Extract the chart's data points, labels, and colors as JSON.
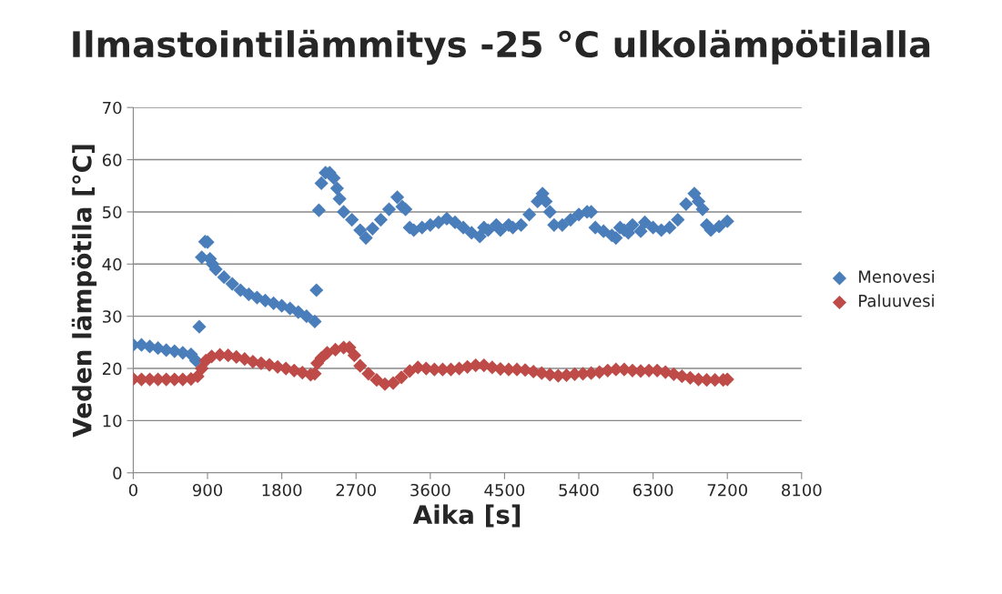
{
  "chart_data": {
    "type": "scatter",
    "title": "Ilmastointilämmitys -25 °C ulkolämpötilalla",
    "xlabel": "Aika [s]",
    "ylabel": "Veden lämpötila [°C]",
    "xlim": [
      0,
      8100
    ],
    "xticks": [
      0,
      900,
      1800,
      2700,
      3600,
      4500,
      5400,
      6300,
      7200,
      8100
    ],
    "ylim": [
      0,
      70
    ],
    "yticks": [
      0,
      10,
      20,
      30,
      40,
      50,
      60,
      70
    ],
    "grid": "y",
    "legend": "right",
    "marker": "diamond",
    "series": [
      {
        "name": "Menovesi",
        "color": "#4a7ebb",
        "x": [
          0,
          100,
          200,
          300,
          400,
          500,
          600,
          700,
          760,
          800,
          830,
          870,
          900,
          930,
          960,
          1000,
          1100,
          1200,
          1300,
          1400,
          1500,
          1600,
          1700,
          1800,
          1900,
          2000,
          2100,
          2200,
          2220,
          2250,
          2280,
          2330,
          2380,
          2430,
          2470,
          2500,
          2550,
          2650,
          2750,
          2820,
          2900,
          3000,
          3100,
          3200,
          3260,
          3300,
          3350,
          3400,
          3500,
          3600,
          3700,
          3800,
          3900,
          4000,
          4100,
          4200,
          4250,
          4300,
          4400,
          4450,
          4550,
          4600,
          4700,
          4800,
          4900,
          4960,
          5000,
          5050,
          5100,
          5200,
          5300,
          5400,
          5500,
          5550,
          5600,
          5700,
          5800,
          5850,
          5900,
          5950,
          6000,
          6050,
          6150,
          6200,
          6300,
          6400,
          6500,
          6600,
          6700,
          6800,
          6850,
          6900,
          6950,
          7000,
          7100,
          7200
        ],
        "values": [
          24.5,
          24.5,
          24.2,
          23.9,
          23.5,
          23.3,
          23.0,
          22.7,
          21.5,
          28,
          41.3,
          44.3,
          44.2,
          41,
          40,
          39,
          37.5,
          36.2,
          35,
          34.2,
          33.6,
          33.0,
          32.5,
          32,
          31.5,
          30.8,
          30,
          29,
          35,
          50.3,
          55.5,
          57.5,
          57.5,
          56.5,
          54.5,
          52.5,
          50,
          48.5,
          46.5,
          45,
          46.8,
          48.5,
          50.5,
          52.8,
          51,
          50.5,
          47,
          46.5,
          47,
          47.5,
          48,
          48.7,
          48,
          47,
          46,
          45.3,
          47,
          46.5,
          47.5,
          46.5,
          47.5,
          47,
          47.5,
          49.5,
          52,
          53.5,
          52,
          50,
          47.5,
          47.5,
          48.5,
          49.5,
          50,
          50,
          47,
          46.3,
          45.5,
          45,
          47,
          46.5,
          46,
          47.5,
          46.3,
          48,
          47,
          46.5,
          47,
          48.5,
          51.5,
          53.5,
          52,
          50.5,
          47.5,
          46.5,
          47.2,
          48.2
        ]
      },
      {
        "name": "Paluuvesi",
        "color": "#be4b48",
        "x": [
          0,
          100,
          200,
          300,
          400,
          500,
          600,
          700,
          780,
          830,
          880,
          950,
          1050,
          1150,
          1250,
          1350,
          1450,
          1550,
          1650,
          1750,
          1850,
          1950,
          2050,
          2150,
          2200,
          2230,
          2280,
          2350,
          2450,
          2550,
          2620,
          2680,
          2750,
          2850,
          2950,
          3050,
          3150,
          3250,
          3350,
          3450,
          3550,
          3650,
          3750,
          3850,
          3950,
          4050,
          4150,
          4250,
          4350,
          4450,
          4550,
          4650,
          4750,
          4850,
          4950,
          5050,
          5150,
          5250,
          5350,
          5450,
          5550,
          5650,
          5750,
          5850,
          5950,
          6050,
          6150,
          6250,
          6350,
          6450,
          6550,
          6650,
          6750,
          6850,
          6950,
          7050,
          7150,
          7200
        ],
        "values": [
          18,
          17.9,
          17.9,
          17.9,
          17.9,
          17.9,
          17.9,
          18,
          18.5,
          20,
          21.5,
          22.3,
          22.6,
          22.5,
          22.2,
          21.8,
          21.3,
          21,
          20.7,
          20.3,
          20,
          19.6,
          19.2,
          18.8,
          19,
          21,
          22,
          23,
          23.6,
          24,
          24,
          22.5,
          20.5,
          19,
          17.8,
          17.0,
          17.2,
          18.3,
          19.5,
          20.2,
          20,
          19.8,
          19.8,
          19.8,
          20,
          20.3,
          20.6,
          20.6,
          20.2,
          19.9,
          19.8,
          19.8,
          19.7,
          19.4,
          19.1,
          18.8,
          18.6,
          18.7,
          18.9,
          19,
          19.1,
          19.3,
          19.6,
          19.8,
          19.8,
          19.6,
          19.5,
          19.6,
          19.6,
          19.3,
          18.9,
          18.5,
          18.2,
          17.9,
          17.8,
          17.8,
          17.8,
          17.9
        ]
      }
    ]
  }
}
